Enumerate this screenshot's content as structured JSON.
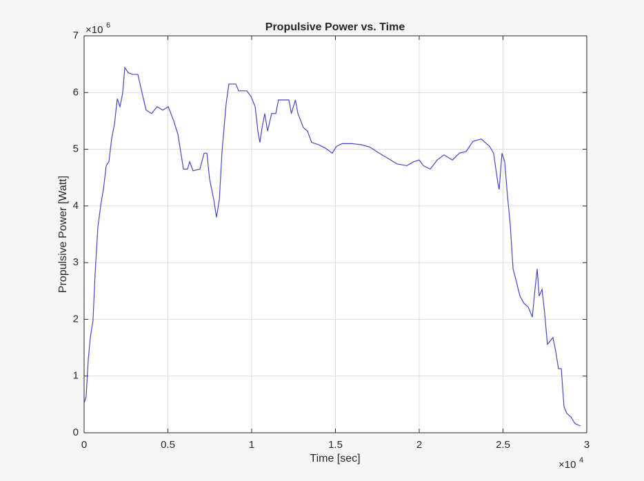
{
  "chart_data": {
    "type": "line",
    "title": "Propulsive Power vs. Time",
    "xlabel": "Time [sec]",
    "ylabel": "Propulsive Power [Watt]",
    "x_multiplier": {
      "base": "×10",
      "exponent": 4
    },
    "y_multiplier": {
      "base": "×10",
      "exponent": 6
    },
    "color": "#4444cc",
    "grid": true,
    "xlim": [
      0,
      3
    ],
    "xticks": [
      0,
      0.5,
      1,
      1.5,
      2,
      2.5,
      3
    ],
    "ylim": [
      0,
      7
    ],
    "yticks": [
      0,
      1,
      2,
      3,
      4,
      5,
      6,
      7
    ],
    "x": [
      0,
      0.012,
      0.025,
      0.037,
      0.053,
      0.066,
      0.082,
      0.099,
      0.115,
      0.132,
      0.148,
      0.165,
      0.181,
      0.198,
      0.214,
      0.23,
      0.243,
      0.263,
      0.288,
      0.321,
      0.346,
      0.37,
      0.403,
      0.436,
      0.469,
      0.502,
      0.535,
      0.56,
      0.576,
      0.593,
      0.617,
      0.63,
      0.65,
      0.691,
      0.716,
      0.733,
      0.749,
      0.774,
      0.79,
      0.807,
      0.823,
      0.848,
      0.864,
      0.905,
      0.922,
      0.971,
      0.996,
      1.021,
      1.037,
      1.049,
      1.062,
      1.078,
      1.095,
      1.119,
      1.144,
      1.16,
      1.222,
      1.237,
      1.261,
      1.276,
      1.309,
      1.333,
      1.358,
      1.399,
      1.44,
      1.481,
      1.506,
      1.539,
      1.597,
      1.654,
      1.704,
      1.745,
      1.802,
      1.868,
      1.926,
      1.967,
      2.0,
      2.025,
      2.066,
      2.107,
      2.148,
      2.198,
      2.239,
      2.28,
      2.321,
      2.37,
      2.42,
      2.444,
      2.469,
      2.477,
      2.494,
      2.51,
      2.527,
      2.543,
      2.56,
      2.576,
      2.601,
      2.626,
      2.65,
      2.675,
      2.691,
      2.704,
      2.716,
      2.733,
      2.749,
      2.765,
      2.782,
      2.798,
      2.815,
      2.831,
      2.848,
      2.864,
      2.881,
      2.905,
      2.93,
      2.963
    ],
    "values": [
      0.52,
      0.64,
      1.3,
      1.68,
      1.98,
      2.83,
      3.62,
      4.01,
      4.29,
      4.71,
      4.78,
      5.2,
      5.44,
      5.89,
      5.75,
      5.99,
      6.44,
      6.35,
      6.32,
      6.32,
      5.99,
      5.69,
      5.63,
      5.75,
      5.69,
      5.75,
      5.5,
      5.26,
      4.96,
      4.65,
      4.65,
      4.78,
      4.62,
      4.65,
      4.93,
      4.93,
      4.47,
      4.11,
      3.8,
      4.11,
      4.96,
      5.81,
      6.15,
      6.15,
      6.03,
      6.03,
      5.93,
      5.75,
      5.32,
      5.12,
      5.38,
      5.63,
      5.32,
      5.63,
      5.63,
      5.87,
      5.87,
      5.63,
      5.87,
      5.63,
      5.38,
      5.32,
      5.12,
      5.08,
      5.02,
      4.93,
      5.05,
      5.1,
      5.1,
      5.08,
      5.04,
      4.96,
      4.86,
      4.74,
      4.71,
      4.78,
      4.81,
      4.71,
      4.65,
      4.81,
      4.9,
      4.81,
      4.93,
      4.96,
      5.14,
      5.18,
      5.05,
      4.93,
      4.41,
      4.29,
      4.93,
      4.78,
      4.17,
      3.68,
      2.89,
      2.71,
      2.41,
      2.28,
      2.22,
      2.04,
      2.53,
      2.89,
      2.41,
      2.53,
      2.1,
      1.56,
      1.62,
      1.68,
      1.43,
      1.13,
      1.13,
      0.46,
      0.34,
      0.28,
      0.16,
      0.12
    ]
  }
}
